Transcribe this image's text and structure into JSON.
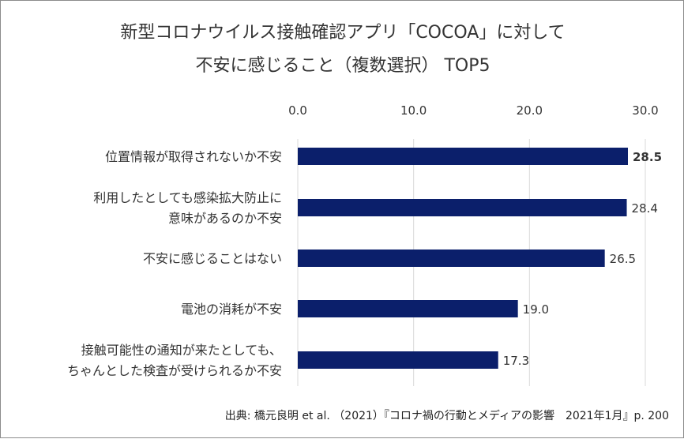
{
  "chart_data": {
    "type": "bar",
    "orientation": "horizontal",
    "title_lines": [
      "新型コロナウイルス接触確認アプリ「COCOA」に対して",
      "不安に感じること（複数選択） TOP5"
    ],
    "categories": [
      [
        "位置情報が取得されないか不安"
      ],
      [
        "利用したとしても感染拡大防止に",
        "意味があるのか不安"
      ],
      [
        "不安に感じることはない"
      ],
      [
        "電池の消耗が不安"
      ],
      [
        "接触可能性の通知が来たとしても、",
        "ちゃんとした検査が受けられるか不安"
      ]
    ],
    "values": [
      28.5,
      28.4,
      26.5,
      19.0,
      17.3
    ],
    "value_labels": [
      "28.5",
      "28.4",
      "26.5",
      "19.0",
      "17.3"
    ],
    "highlight_index": 0,
    "xlim": [
      0,
      30
    ],
    "ticks": [
      0,
      10,
      20,
      30
    ],
    "tick_labels": [
      "0.0",
      "10.0",
      "20.0",
      "30.0"
    ],
    "axis_position": "top",
    "gridlines": true,
    "bar_color": "#0b1f6b",
    "grid_color": "#d9d9d9"
  },
  "source": "出典: 橋元良明 et al. （2021）『コロナ禍の行動とメディアの影響　2021年1月』p. 200"
}
